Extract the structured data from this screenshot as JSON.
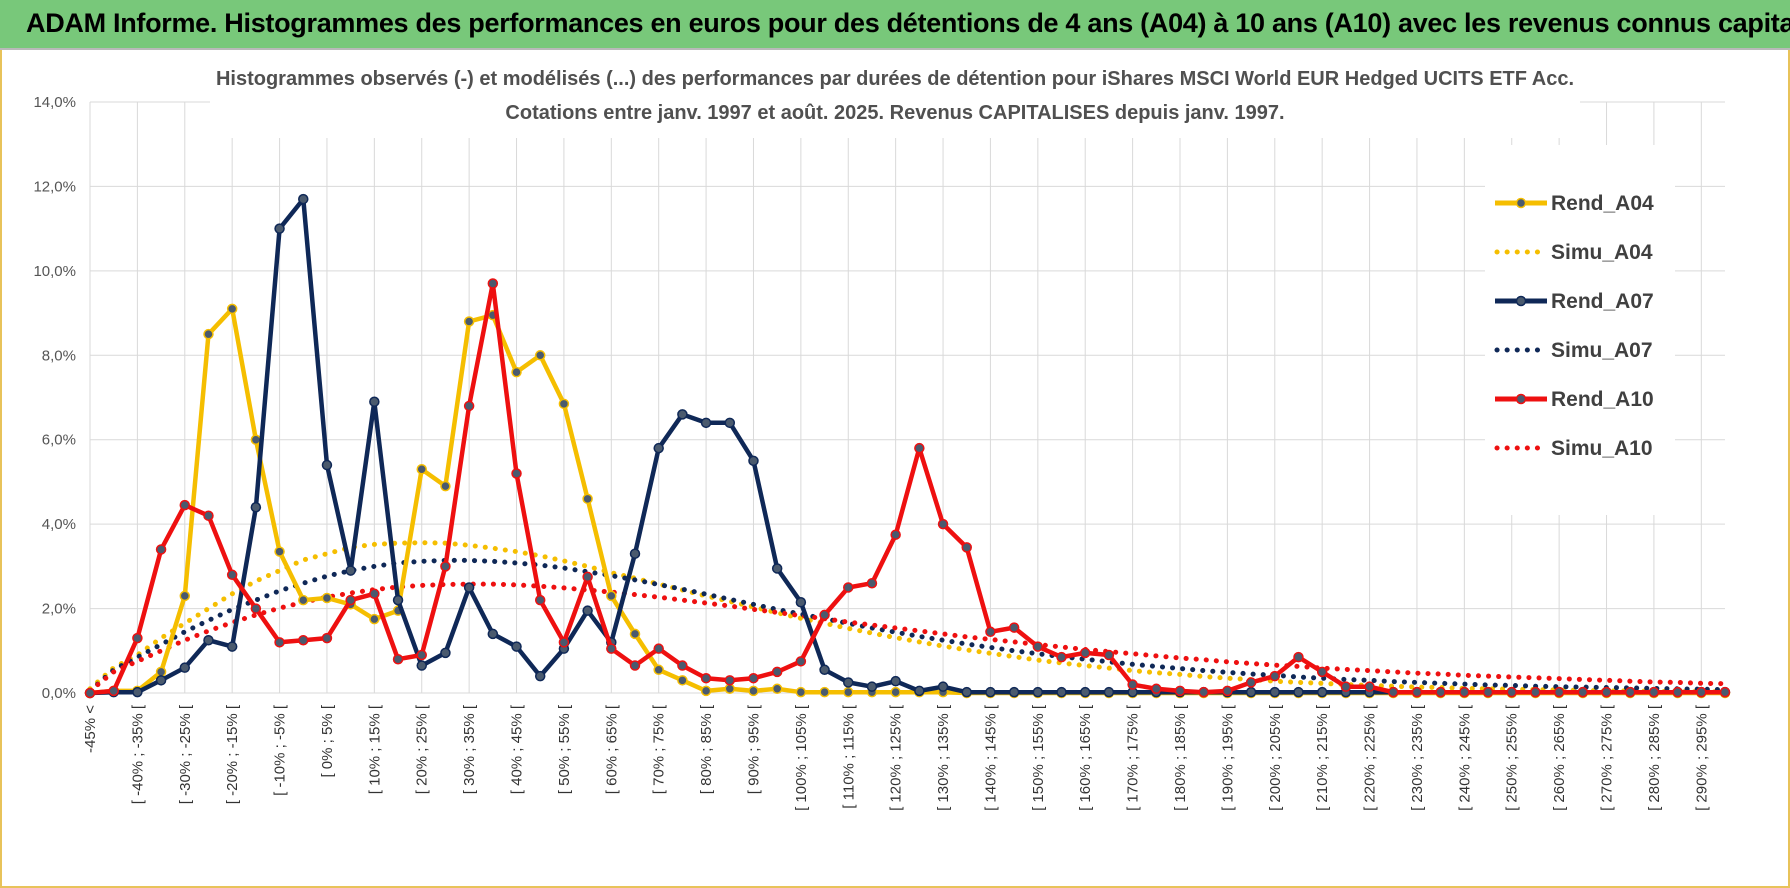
{
  "banner": {
    "title": "ADAM Informe. Histogrammes des performances en euros pour des détentions de 4 ans (A04) à 10 ans (A10) avec les revenus connus capitalisés"
  },
  "chart_data": {
    "type": "line",
    "title_lines": [
      "Histogrammes observés (-) et modélisés (...) des performances par durées de détention pour iShares MSCI World EUR Hedged UCITS ETF Acc.",
      "Cotations entre janv. 1997 et août. 2025. Revenus CAPITALISES depuis janv. 1997."
    ],
    "y_ticks": [
      "0,0%",
      "2,0%",
      "4,0%",
      "6,0%",
      "8,0%",
      "10,0%",
      "12,0%",
      "14,0%"
    ],
    "ylim": [
      0,
      14
    ],
    "grid": true,
    "legend_position": "right",
    "categories": [
      "-45% <",
      "[ -45% ; -40% [",
      "[ -40% ; -35% [",
      "[ -35% ; -30% [",
      "[ -30% ; -25% [",
      "[ -25% ; -20% [",
      "[ -20% ; -15% [",
      "[ -15% ; -10% [",
      "[ -10% ; -5% [",
      "[ -5% ; 0% [",
      "[ 0% ; 5% [",
      "[ 5% ; 10% [",
      "[ 10% ; 15% [",
      "[ 15% ; 20% [",
      "[ 20% ; 25% [",
      "[ 25% ; 30% [",
      "[ 30% ; 35% [",
      "[ 35% ; 40% [",
      "[ 40% ; 45% [",
      "[ 45% ; 50% [",
      "[ 50% ; 55% [",
      "[ 55% ; 60% [",
      "[ 60% ; 65% [",
      "[ 65% ; 70% [",
      "[ 70% ; 75% [",
      "[ 75% ; 80% [",
      "[ 80% ; 85% [",
      "[ 85% ; 90% [",
      "[ 90% ; 95% [",
      "[ 95% ; 100% [",
      "[ 100% ; 105% [",
      "[ 105% ; 110% [",
      "[ 110% ; 115% [",
      "[ 115% ; 120% [",
      "[ 120% ; 125% [",
      "[ 125% ; 130% [",
      "[ 130% ; 135% [",
      "[ 135% ; 140% [",
      "[ 140% ; 145% [",
      "[ 145% ; 150% [",
      "[ 150% ; 155% [",
      "[ 155% ; 160% [",
      "[ 160% ; 165% [",
      "[ 165% ; 170% [",
      "[ 170% ; 175% [",
      "[ 175% ; 180% [",
      "[ 180% ; 185% [",
      "[ 185% ; 190% [",
      "[ 190% ; 195% [",
      "[ 195% ; 200% [",
      "[ 200% ; 205% [",
      "[ 205% ; 210% [",
      "[ 210% ; 215% [",
      "[ 215% ; 220% [",
      "[ 220% ; 225% [",
      "[ 225% ; 230% [",
      "[ 230% ; 235% [",
      "[ 235% ; 240% [",
      "[ 240% ; 245% [",
      "[ 245% ; 250% [",
      "[ 250% ; 255% [",
      "[ 255% ; 260% [",
      "[ 260% ; 265% [",
      "[ 265% ; 270% [",
      "[ 270% ; 275% [",
      "[ 275% ; 280% [",
      "[ 280% ; 285% [",
      "[ 285% ; 290% [",
      "[ 290% ; 295% [",
      "[ 295% ; 300% ["
    ],
    "visible_x_labels": [
      "-45% <",
      "[ -40% ; -35% [",
      "[ -30% ; -25% [",
      "[ -20% ; -15% [",
      "[ -10% ; -5% [",
      "[ 0% ; 5% [",
      "[ 10% ; 15% [",
      "[ 20% ; 25% [",
      "[ 30% ; 35% [",
      "[ 40% ; 45% [",
      "[ 50% ; 55% [",
      "[ 60% ; 65% [",
      "[ 70% ; 75% [",
      "[ 80% ; 85% [",
      "[ 90% ; 95% [",
      "[ 100% ; 105% [",
      "[ 110% ; 115% [",
      "[ 120% ; 125% [",
      "[ 130% ; 135% [",
      "[ 140% ; 145% [",
      "[ 150% ; 155% [",
      "[ 160% ; 165% [",
      "[ 170% ; 175% [",
      "[ 180% ; 185% [",
      "[ 190% ; 195% [",
      "[ 200% ; 205% [",
      "[ 210% ; 215% [",
      "[ 220% ; 225% [",
      "[ 230% ; 235% [",
      "[ 240% ; 245% [",
      "[ 250% ; 255% [",
      "[ 260% ; 265% [",
      "[ 270% ; 275% [",
      "[ 280% ; 285% [",
      "[ 290% ; 295% ["
    ],
    "series": [
      {
        "name": "Rend_A04",
        "style": "solid",
        "markers": true,
        "color": "#f5be00",
        "values": [
          0,
          0.05,
          0.05,
          0.5,
          2.3,
          8.5,
          9.1,
          6.0,
          3.35,
          2.2,
          2.25,
          2.1,
          1.75,
          1.95,
          5.3,
          4.9,
          8.8,
          8.95,
          7.6,
          8.0,
          6.85,
          4.6,
          2.3,
          1.4,
          0.55,
          0.3,
          0.05,
          0.1,
          0.05,
          0.1,
          0.02,
          0.02,
          0.02,
          0.02,
          0.02,
          0.02,
          0.02,
          0,
          0,
          0,
          0,
          0,
          0,
          0,
          0,
          0,
          0,
          0,
          0,
          0,
          0,
          0,
          0,
          0,
          0,
          0,
          0,
          0,
          0,
          0,
          0,
          0,
          0,
          0,
          0,
          0,
          0,
          0,
          0,
          0
        ]
      },
      {
        "name": "Simu_A04",
        "style": "dotted",
        "markers": false,
        "color": "#f5be00",
        "values": [
          0.1,
          0.6,
          0.9,
          1.3,
          1.65,
          2.0,
          2.35,
          2.65,
          2.9,
          3.15,
          3.3,
          3.45,
          3.52,
          3.55,
          3.56,
          3.55,
          3.5,
          3.43,
          3.35,
          3.25,
          3.13,
          3.0,
          2.85,
          2.72,
          2.58,
          2.44,
          2.3,
          2.17,
          2.04,
          1.9,
          1.77,
          1.65,
          1.53,
          1.42,
          1.31,
          1.21,
          1.11,
          1.02,
          0.94,
          0.86,
          0.78,
          0.71,
          0.65,
          0.59,
          0.53,
          0.48,
          0.44,
          0.39,
          0.35,
          0.32,
          0.28,
          0.25,
          0.23,
          0.2,
          0.18,
          0.16,
          0.14,
          0.13,
          0.11,
          0.1,
          0.09,
          0.08,
          0.07,
          0.06,
          0.05,
          0.05,
          0.04,
          0.03,
          0.03,
          0.03
        ]
      },
      {
        "name": "Rend_A07",
        "style": "solid",
        "markers": true,
        "color": "#0f2857",
        "values": [
          0,
          0.02,
          0.02,
          0.3,
          0.6,
          1.25,
          1.1,
          4.4,
          11.0,
          11.7,
          5.4,
          2.9,
          6.9,
          2.2,
          0.65,
          0.95,
          2.5,
          1.4,
          1.1,
          0.4,
          1.05,
          1.95,
          1.2,
          3.3,
          5.8,
          6.6,
          6.4,
          6.4,
          5.5,
          2.95,
          2.15,
          0.55,
          0.25,
          0.15,
          0.28,
          0.05,
          0.15,
          0.02,
          0.02,
          0.02,
          0.02,
          0.02,
          0.02,
          0.02,
          0.02,
          0.02,
          0.02,
          0.02,
          0.02,
          0.02,
          0.02,
          0.02,
          0.02,
          0.02,
          0.02,
          0.02,
          0.02,
          0.02,
          0.02,
          0.02,
          0.02,
          0.02,
          0.02,
          0.02,
          0.02,
          0.02,
          0.02,
          0.02,
          0.02,
          0.02
        ]
      },
      {
        "name": "Simu_A07",
        "style": "dotted",
        "markers": false,
        "color": "#0f2857",
        "values": [
          0.05,
          0.55,
          0.85,
          1.15,
          1.45,
          1.72,
          1.98,
          2.2,
          2.42,
          2.6,
          2.77,
          2.9,
          3.0,
          3.08,
          3.12,
          3.14,
          3.14,
          3.12,
          3.08,
          3.03,
          2.96,
          2.87,
          2.78,
          2.68,
          2.57,
          2.46,
          2.34,
          2.22,
          2.1,
          1.98,
          1.87,
          1.76,
          1.65,
          1.54,
          1.44,
          1.34,
          1.25,
          1.16,
          1.08,
          1.0,
          0.93,
          0.86,
          0.8,
          0.74,
          0.68,
          0.63,
          0.58,
          0.53,
          0.49,
          0.45,
          0.42,
          0.38,
          0.35,
          0.32,
          0.3,
          0.27,
          0.25,
          0.23,
          0.21,
          0.19,
          0.18,
          0.16,
          0.15,
          0.14,
          0.13,
          0.12,
          0.11,
          0.1,
          0.09,
          0.08
        ]
      },
      {
        "name": "Rend_A10",
        "style": "solid",
        "markers": true,
        "color": "#ee1010",
        "values": [
          0,
          0.05,
          1.3,
          3.4,
          4.45,
          4.2,
          2.8,
          2.0,
          1.2,
          1.25,
          1.3,
          2.2,
          2.35,
          0.8,
          0.9,
          3.0,
          6.8,
          9.7,
          5.2,
          2.2,
          1.2,
          2.75,
          1.05,
          0.65,
          1.05,
          0.65,
          0.35,
          0.3,
          0.35,
          0.5,
          0.75,
          1.85,
          2.5,
          2.6,
          3.75,
          5.8,
          4.0,
          3.45,
          1.45,
          1.55,
          1.1,
          0.85,
          0.95,
          0.9,
          0.2,
          0.1,
          0.05,
          0.02,
          0.05,
          0.25,
          0.4,
          0.85,
          0.5,
          0.15,
          0.15,
          0.02,
          0.02,
          0.02,
          0.02,
          0.02,
          0.02,
          0.02,
          0.02,
          0.02,
          0.02,
          0.02,
          0.02,
          0.02,
          0.02,
          0.02
        ]
      },
      {
        "name": "Simu_A10",
        "style": "dotted",
        "markers": false,
        "color": "#ee1010",
        "values": [
          0.05,
          0.5,
          0.75,
          1.0,
          1.25,
          1.47,
          1.67,
          1.85,
          2.01,
          2.15,
          2.27,
          2.37,
          2.45,
          2.51,
          2.55,
          2.57,
          2.58,
          2.58,
          2.56,
          2.53,
          2.49,
          2.44,
          2.39,
          2.33,
          2.27,
          2.2,
          2.13,
          2.06,
          1.98,
          1.91,
          1.83,
          1.76,
          1.68,
          1.61,
          1.54,
          1.47,
          1.4,
          1.33,
          1.27,
          1.21,
          1.15,
          1.09,
          1.03,
          0.98,
          0.93,
          0.88,
          0.83,
          0.79,
          0.74,
          0.7,
          0.66,
          0.63,
          0.59,
          0.56,
          0.53,
          0.5,
          0.47,
          0.45,
          0.42,
          0.4,
          0.38,
          0.36,
          0.34,
          0.32,
          0.3,
          0.28,
          0.26,
          0.25,
          0.23,
          0.22
        ]
      }
    ]
  }
}
